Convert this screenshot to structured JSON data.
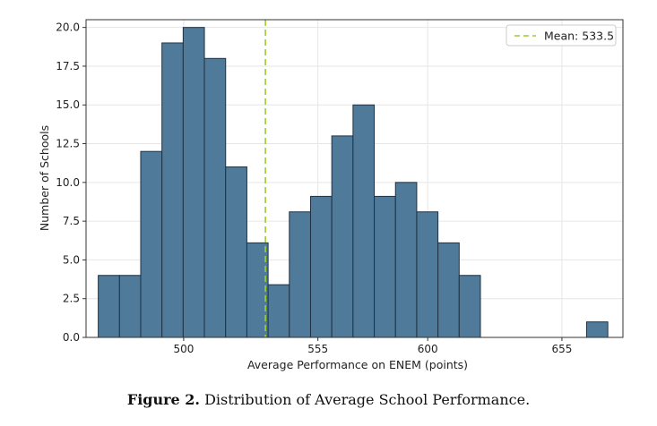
{
  "figure": {
    "label": "Figure 2.",
    "text": "Distribution of Average School Performance."
  },
  "chart_data": {
    "type": "bar",
    "subtype": "histogram",
    "xlabel": "Average Performance on ENEM (points)",
    "ylabel": "Number of Schools",
    "xlim": [
      460,
      680
    ],
    "ylim": [
      0,
      20.5
    ],
    "xticks": [
      500,
      555,
      600,
      655
    ],
    "yticks": [
      0.0,
      2.5,
      5.0,
      7.5,
      10.0,
      12.5,
      15.0,
      17.5,
      20.0
    ],
    "grid": true,
    "legend_position": "top-right",
    "bar_color": "#4f7a99",
    "bar_edge_color": "#1f3244",
    "mean_line_color": "#9acd32",
    "mean": {
      "label": "Mean: 533.5",
      "value": 533.5
    },
    "bins": [
      {
        "x0": 465.0,
        "x1": 473.7,
        "count": 4
      },
      {
        "x0": 473.7,
        "x1": 482.4,
        "count": 4
      },
      {
        "x0": 482.4,
        "x1": 491.1,
        "count": 12
      },
      {
        "x0": 491.1,
        "x1": 499.8,
        "count": 19
      },
      {
        "x0": 499.8,
        "x1": 508.5,
        "count": 20
      },
      {
        "x0": 508.5,
        "x1": 517.2,
        "count": 18
      },
      {
        "x0": 517.2,
        "x1": 525.9,
        "count": 11
      },
      {
        "x0": 525.9,
        "x1": 534.6,
        "count": 6.1
      },
      {
        "x0": 534.6,
        "x1": 543.3,
        "count": 3.4
      },
      {
        "x0": 543.3,
        "x1": 552.0,
        "count": 8.1
      },
      {
        "x0": 552.0,
        "x1": 560.7,
        "count": 9.1
      },
      {
        "x0": 560.7,
        "x1": 569.4,
        "count": 13
      },
      {
        "x0": 569.4,
        "x1": 578.1,
        "count": 15
      },
      {
        "x0": 578.1,
        "x1": 586.8,
        "count": 9.1
      },
      {
        "x0": 586.8,
        "x1": 595.5,
        "count": 10
      },
      {
        "x0": 595.5,
        "x1": 604.2,
        "count": 8.1
      },
      {
        "x0": 604.2,
        "x1": 612.9,
        "count": 6.1
      },
      {
        "x0": 612.9,
        "x1": 621.6,
        "count": 4
      },
      {
        "x0": 665.1,
        "x1": 673.8,
        "count": 1
      }
    ]
  }
}
